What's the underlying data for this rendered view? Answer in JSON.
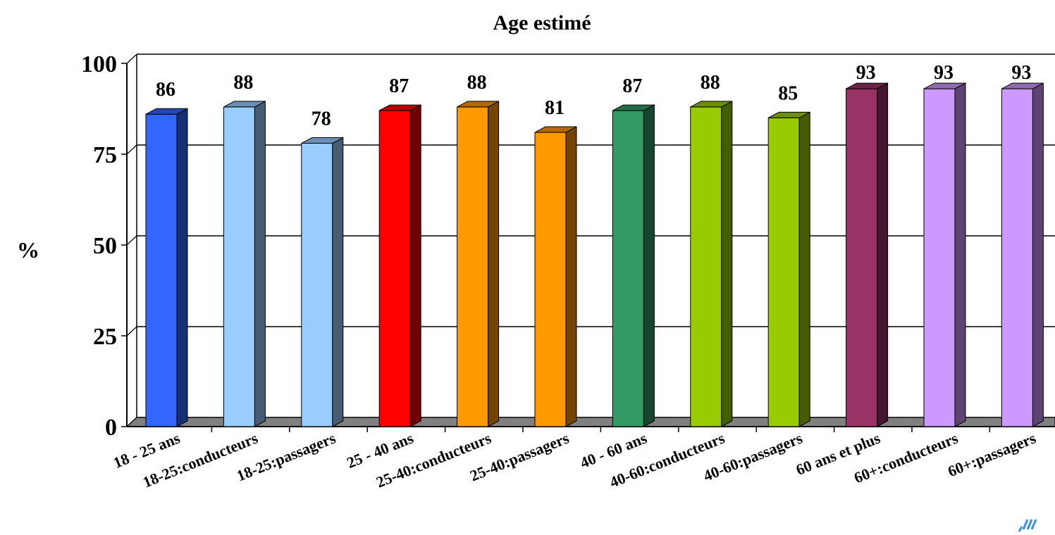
{
  "chart_data": {
    "type": "bar",
    "title": "Age estimé",
    "xlabel": "",
    "ylabel": "%",
    "ylim": [
      0,
      100
    ],
    "yticks": [
      "0",
      "25",
      "50",
      "75",
      "100"
    ],
    "grid": true,
    "legend": "none",
    "categories": [
      "18 - 25 ans",
      "18-25:conducteurs",
      "18-25:passagers",
      "25 - 40 ans",
      "25-40:conducteurs",
      "25-40:passagers",
      "40 - 60 ans",
      "40-60:conducteurs",
      "40-60:passagers",
      "60 ans et plus",
      "60+:conducteurs",
      "60+:passagers"
    ],
    "values": [
      86,
      88,
      78,
      87,
      88,
      81,
      87,
      88,
      85,
      93,
      93,
      93
    ],
    "data_labels": [
      "86",
      "88",
      "78",
      "87",
      "88",
      "81",
      "87",
      "88",
      "85",
      "93",
      "93",
      "93"
    ],
    "colors": [
      "#3366ff",
      "#99ccff",
      "#99ccff",
      "#ff0000",
      "#ff9900",
      "#ff9900",
      "#339966",
      "#99cc00",
      "#99cc00",
      "#993366",
      "#cc99ff",
      "#cc99ff"
    ]
  }
}
